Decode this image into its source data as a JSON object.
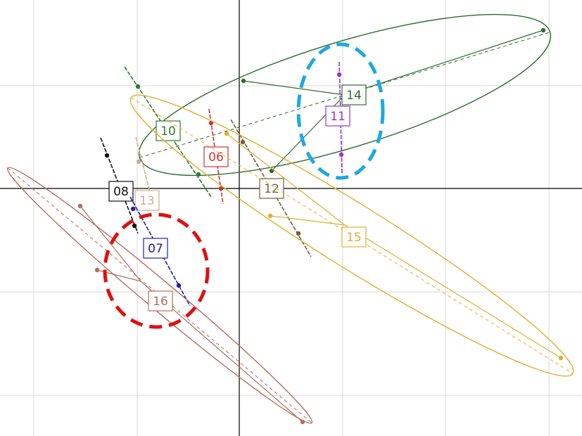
{
  "groups": [
    {
      "label": "14"
    },
    {
      "label": "10"
    },
    {
      "label": "11"
    },
    {
      "label": "06"
    },
    {
      "label": "12"
    },
    {
      "label": "15"
    },
    {
      "label": "08"
    },
    {
      "label": "13"
    },
    {
      "label": "07"
    },
    {
      "label": "16"
    }
  ]
}
